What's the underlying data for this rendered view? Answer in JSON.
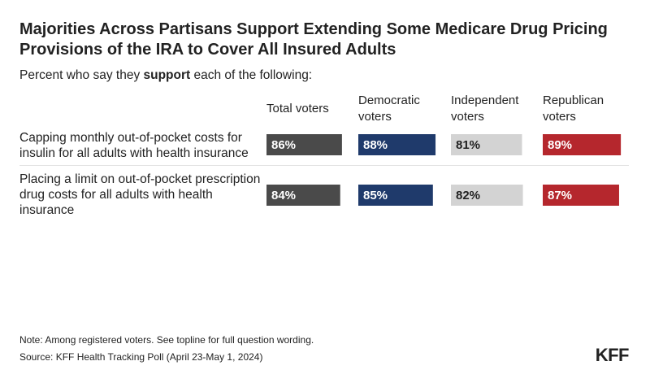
{
  "chart_data": {
    "type": "bar",
    "title": "Majorities Across Partisans Support Extending Some Medicare Drug Pricing Provisions of the IRA to Cover All Insured Adults",
    "subtitle_pre": "Percent who say they ",
    "subtitle_bold": "support",
    "subtitle_post": " each of the following:",
    "categories": [
      "Capping monthly out-of-pocket costs for insulin for all adults with health insurance",
      "Placing a limit on out-of-pocket prescription drug costs for all adults with health insurance"
    ],
    "series": [
      {
        "name": "Total voters",
        "name_lines": [
          "Total voters"
        ],
        "values": [
          86,
          84
        ],
        "color": "#4a4a4a",
        "label_color": "#ffffff"
      },
      {
        "name": "Democratic voters",
        "name_lines": [
          "Democratic",
          "voters"
        ],
        "values": [
          88,
          85
        ],
        "color": "#1f3a6b",
        "label_color": "#ffffff"
      },
      {
        "name": "Independent voters",
        "name_lines": [
          "Independent",
          "voters"
        ],
        "values": [
          81,
          82
        ],
        "color": "#d3d3d3",
        "label_color": "#222222"
      },
      {
        "name": "Republican voters",
        "name_lines": [
          "Republican",
          "voters"
        ],
        "values": [
          89,
          87
        ],
        "color": "#b5272d",
        "label_color": "#ffffff"
      }
    ],
    "value_suffix": "%",
    "xlim": [
      0,
      100
    ],
    "xlabel": "",
    "ylabel": ""
  },
  "footer": {
    "note": "Note: Among registered voters. See topline for full question wording.",
    "source": "Source: KFF Health Tracking Poll (April 23-May 1, 2024)",
    "logo": "KFF"
  }
}
